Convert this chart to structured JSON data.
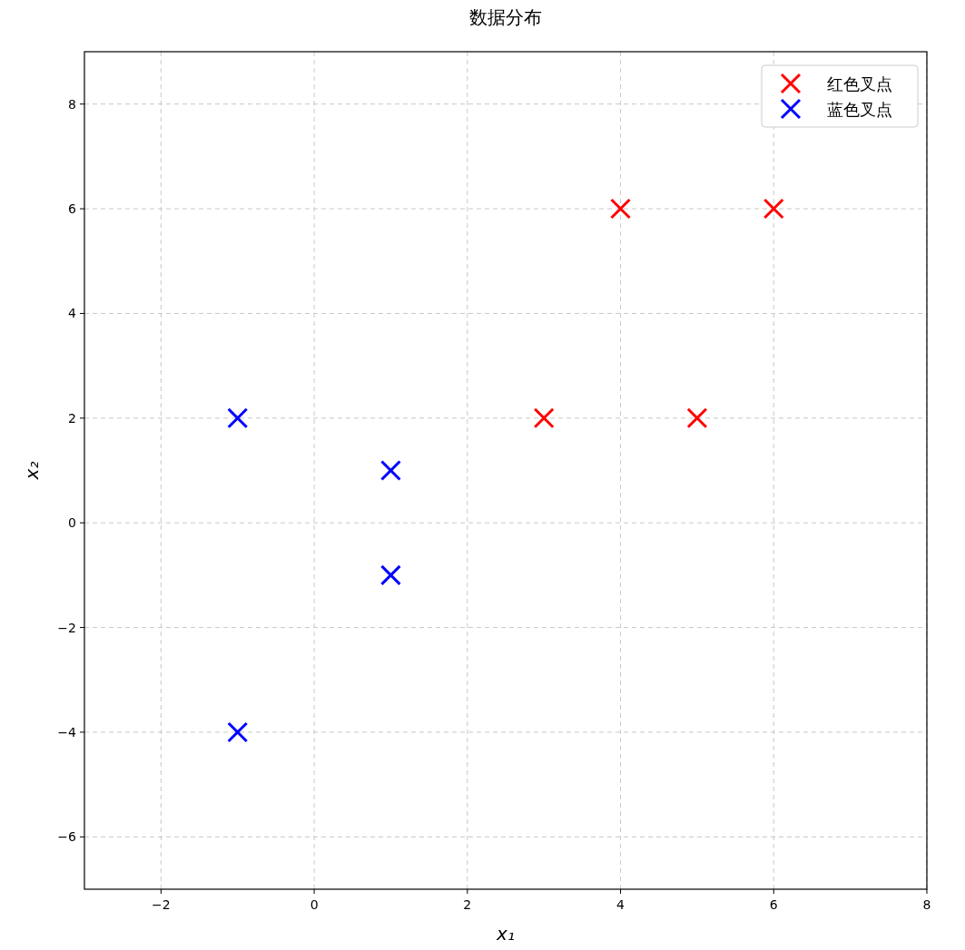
{
  "chart_data": {
    "type": "scatter",
    "title": "数据分布",
    "xlabel": "x₁",
    "ylabel": "x₂",
    "xlim": [
      -3,
      8
    ],
    "xticks": [
      -2,
      0,
      2,
      4,
      6,
      8
    ],
    "ylim": [
      -7,
      9
    ],
    "yticks": [
      -6,
      -4,
      -2,
      0,
      2,
      4,
      6,
      8
    ],
    "grid": true,
    "legend": "top right",
    "marker": "cross",
    "series": [
      {
        "name": "红色叉点",
        "color": "#ff0000",
        "x": [
          3,
          4,
          5,
          6
        ],
        "values": [
          2,
          6,
          2,
          6
        ]
      },
      {
        "name": "蓝色叉点",
        "color": "#0000ff",
        "x": [
          -1,
          1,
          1,
          -1
        ],
        "values": [
          2,
          1,
          -1,
          -4
        ]
      }
    ]
  }
}
